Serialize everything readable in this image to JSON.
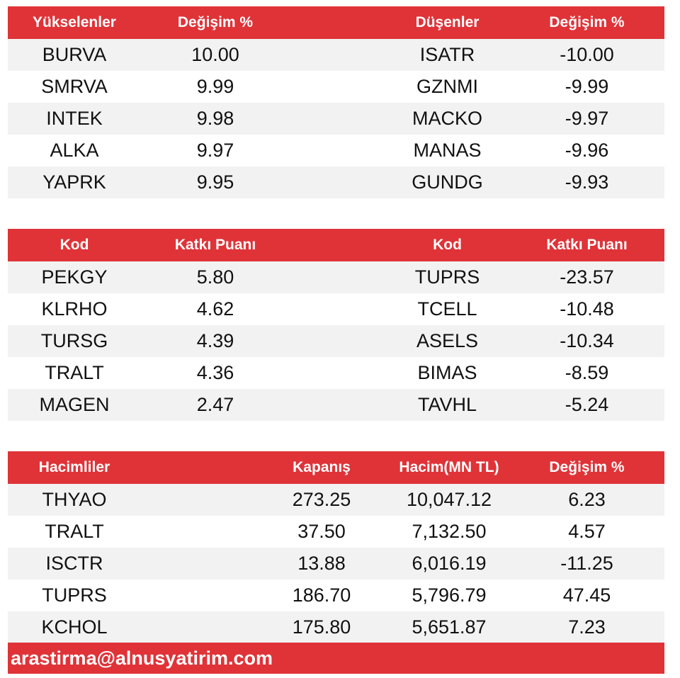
{
  "gainers_losers": {
    "headers": [
      "Yükselenler",
      "Değişim %",
      "Düşenler",
      "Değişim %"
    ],
    "rows": [
      [
        "BURVA",
        "10.00",
        "ISATR",
        "-10.00"
      ],
      [
        "SMRVA",
        "9.99",
        "GZNMI",
        "-9.99"
      ],
      [
        "INTEK",
        "9.98",
        "MACKO",
        "-9.97"
      ],
      [
        "ALKA",
        "9.97",
        "MANAS",
        "-9.96"
      ],
      [
        "YAPRK",
        "9.95",
        "GUNDG",
        "-9.93"
      ]
    ]
  },
  "contribution": {
    "headers": [
      "Kod",
      "Katkı Puanı",
      "Kod",
      "Katkı Puanı"
    ],
    "rows": [
      [
        "PEKGY",
        "5.80",
        "TUPRS",
        "-23.57"
      ],
      [
        "KLRHO",
        "4.62",
        "TCELL",
        "-10.48"
      ],
      [
        "TURSG",
        "4.39",
        "ASELS",
        "-10.34"
      ],
      [
        "TRALT",
        "4.36",
        "BIMAS",
        "-8.59"
      ],
      [
        "MAGEN",
        "2.47",
        "TAVHL",
        "-5.24"
      ]
    ]
  },
  "volume": {
    "headers": [
      "Hacimliler",
      "Kapanış",
      "Hacim(MN TL)",
      "Değişim %"
    ],
    "rows": [
      [
        "THYAO",
        "273.25",
        "10,047.12",
        "6.23"
      ],
      [
        "TRALT",
        "37.50",
        "7,132.50",
        "4.57"
      ],
      [
        "ISCTR",
        "13.88",
        "6,016.19",
        "-11.25"
      ],
      [
        "TUPRS",
        "186.70",
        "5,796.79",
        "47.45"
      ],
      [
        "KCHOL",
        "175.80",
        "5,651.87",
        "7.23"
      ]
    ]
  },
  "footer": {
    "email": "arastirma@alnusyatirim.com"
  },
  "colors": {
    "header_bg": "#df3338",
    "header_text": "#ffffff",
    "row_shade": "#f2f2f2"
  }
}
